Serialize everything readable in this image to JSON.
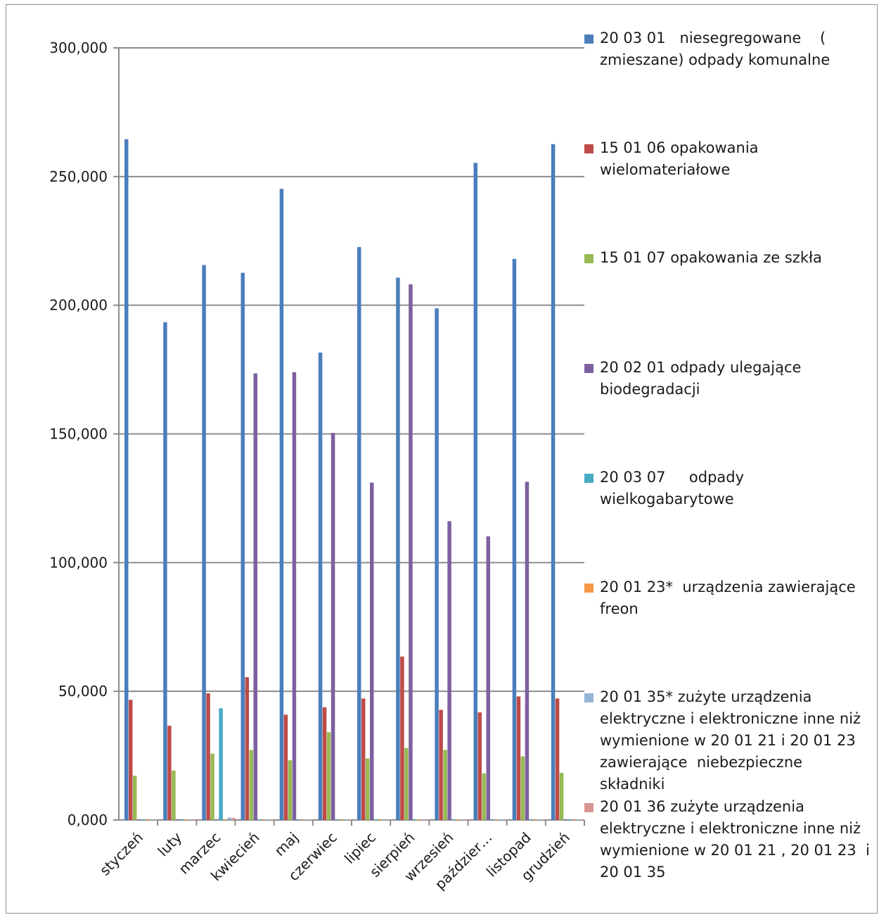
{
  "chart_data": {
    "type": "bar",
    "title": "",
    "xlabel": "",
    "ylabel": "",
    "ylim": [
      0,
      300
    ],
    "yticks": [
      "0,000",
      "50,000",
      "100,000",
      "150,000",
      "200,000",
      "250,000",
      "300,000"
    ],
    "grid": true,
    "legend_position": "right",
    "categories": [
      "styczeń",
      "luty",
      "marzec",
      "kwiecień",
      "maj",
      "czerwiec",
      "lipiec",
      "sierpień",
      "wrzesień",
      "paździer…",
      "listopad",
      "grudzień"
    ],
    "series": [
      {
        "name": "20 03 01   niesegregowane    (\nzmieszane) odpady komunalne",
        "color": "#4a7ebb",
        "values": [
          264.5,
          193.4,
          215.6,
          212.6,
          245.2,
          181.6,
          222.6,
          210.7,
          198.8,
          255.3,
          218.0,
          262.6
        ]
      },
      {
        "name": "15 01 06 opakowania\nwielomateriałowe",
        "color": "#be4b48",
        "values": [
          46.7,
          36.6,
          49.2,
          55.5,
          40.9,
          43.8,
          47.2,
          63.5,
          42.8,
          41.8,
          48.0,
          47.2
        ]
      },
      {
        "name": "15 01 07 opakowania ze szkła",
        "color": "#98b954",
        "values": [
          17.2,
          19.2,
          25.8,
          27.2,
          23.2,
          34.1,
          23.9,
          28.0,
          27.2,
          18.1,
          24.7,
          18.3
        ]
      },
      {
        "name": "20 02 01 odpady ulegające\nbiodegradacji",
        "color": "#7d60a0",
        "values": [
          0,
          0,
          0,
          173.5,
          174.0,
          150.4,
          131.1,
          208.1,
          116.1,
          110.2,
          131.4,
          0
        ]
      },
      {
        "name": "20 03 07     odpady\nwielkogabarytowe",
        "color": "#46aac5",
        "values": [
          0,
          0,
          43.4,
          0,
          0,
          0,
          0,
          0,
          0,
          0,
          0,
          0
        ]
      },
      {
        "name": "20 01 23*  urządzenia zawierające\nfreon",
        "color": "#f79646",
        "values": [
          0,
          0,
          0,
          0,
          0,
          0,
          0,
          0,
          0,
          0,
          0,
          0
        ]
      },
      {
        "name": "20 01 35* zużyte urządzenia\nelektryczne i elektroniczne inne niż\nwymienione w 20 01 21 i 20 01 23\nzawierające  niebezpieczne\nskładniki",
        "color": "#95b3d7",
        "values": [
          0,
          0,
          0.9,
          0,
          0,
          0,
          0,
          0,
          0,
          0,
          0,
          0
        ]
      },
      {
        "name": "20 01 36 zużyte urządzenia\nelektryczne i elektroniczne inne niż\nwymienione w 20 01 21 , 20 01 23  i\n20 01 35",
        "color": "#d99694",
        "values": [
          0,
          0,
          0.8,
          0,
          0,
          0,
          0,
          0,
          0,
          0,
          0,
          0
        ]
      }
    ]
  }
}
